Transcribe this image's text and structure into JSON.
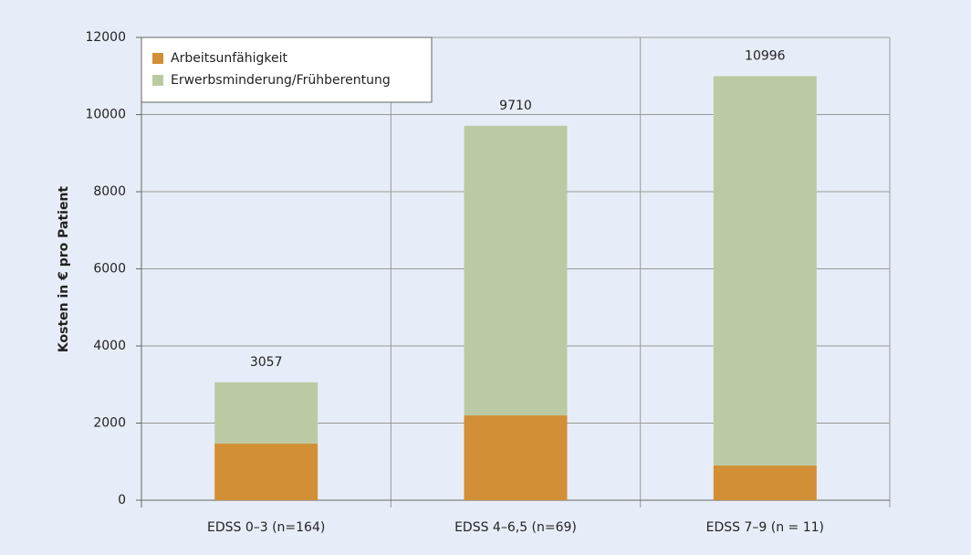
{
  "chart_data": {
    "type": "stacked_bar",
    "y_label": "Kosten in € pro Patient",
    "categories": [
      "EDSS 0–3 (n=164)",
      "EDSS 4–6,5 (n=69)",
      "EDSS 7–9 (n = 11)"
    ],
    "series": [
      {
        "name": "Arbeitsunfähigkeit",
        "color": "#d38f35",
        "values": [
          1470,
          2200,
          900
        ]
      },
      {
        "name": "Erwerbsminderung/Frühberentung",
        "color": "#bccaa4",
        "values": [
          1587,
          7510,
          10096
        ]
      }
    ],
    "totals": [
      3057,
      9710,
      10996
    ],
    "ylim": [
      0,
      12000
    ],
    "yticks": [
      0,
      2000,
      4000,
      6000,
      8000,
      10000,
      12000
    ],
    "grid": true,
    "legend": "upper left"
  }
}
